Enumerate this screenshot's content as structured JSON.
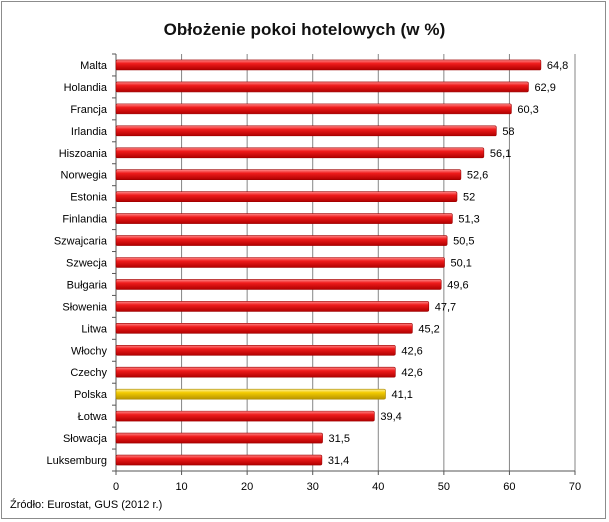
{
  "chart_data": {
    "type": "bar",
    "orientation": "horizontal",
    "title": "Obłożenie pokoi hotelowych (w %)",
    "categories": [
      "Malta",
      "Holandia",
      "Francja",
      "Irlandia",
      "Hiszoania",
      "Norwegia",
      "Estonia",
      "Finlandia",
      "Szwajcaria",
      "Szwecja",
      "Bułgaria",
      "Słowenia",
      "Litwa",
      "Włochy",
      "Czechy",
      "Polska",
      "Łotwa",
      "Słowacja",
      "Luksemburg"
    ],
    "values": [
      64.8,
      62.9,
      60.3,
      58,
      56.1,
      52.6,
      52,
      51.3,
      50.5,
      50.1,
      49.6,
      47.7,
      45.2,
      42.6,
      42.6,
      41.1,
      39.4,
      31.5,
      31.4
    ],
    "value_labels": [
      "64,8",
      "62,9",
      "60,3",
      "58",
      "56,1",
      "52,6",
      "52",
      "51,3",
      "50,5",
      "50,1",
      "49,6",
      "47,7",
      "45,2",
      "42,6",
      "42,6",
      "41,1",
      "39,4",
      "31,5",
      "31,4"
    ],
    "highlight": "Polska",
    "xlim": [
      0,
      70
    ],
    "xticks": [
      0,
      10,
      20,
      30,
      40,
      50,
      60,
      70
    ],
    "grid": true,
    "colors": {
      "bar": "#e8141c",
      "highlight": "#f0c800",
      "grid": "#868686"
    }
  },
  "source": "Źródło: Eurostat, GUS (2012 r.)"
}
